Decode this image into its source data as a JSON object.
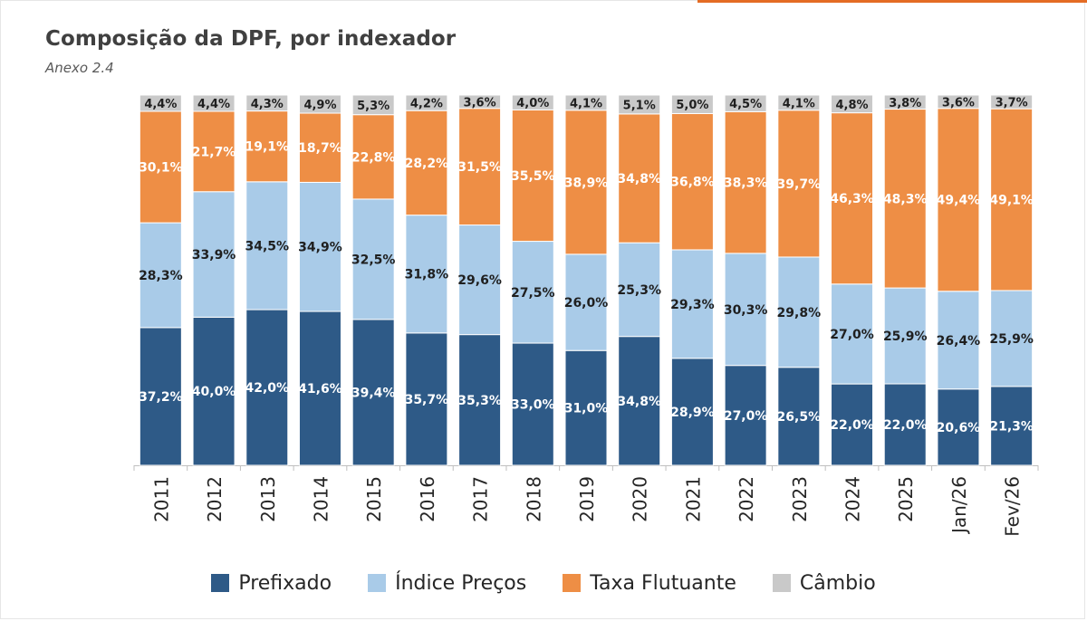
{
  "title": "Composição da DPF, por indexador",
  "subtitle": "Anexo 2.4",
  "colors": {
    "prefixado": "#2e5a87",
    "indice_precos": "#a9cbe8",
    "taxa_flutuante": "#ee8e45",
    "cambio": "#c9c9c9"
  },
  "legend": [
    {
      "label": "Prefixado",
      "color": "#2e5a87"
    },
    {
      "label": "Índice Preços",
      "color": "#a9cbe8"
    },
    {
      "label": "Taxa Flutuante",
      "color": "#ee8e45"
    },
    {
      "label": "Câmbio",
      "color": "#c9c9c9"
    }
  ],
  "chart_data": {
    "type": "bar",
    "stacked": true,
    "categories": [
      "2011",
      "2012",
      "2013",
      "2014",
      "2015",
      "2016",
      "2017",
      "2018",
      "2019",
      "2020",
      "2021",
      "2022",
      "2023",
      "2024",
      "2025",
      "Jan/26",
      "Fev/26"
    ],
    "series": [
      {
        "name": "Prefixado",
        "values": [
          37.2,
          40.0,
          42.0,
          41.6,
          39.4,
          35.7,
          35.3,
          33.0,
          31.0,
          34.8,
          28.9,
          27.0,
          26.5,
          22.0,
          22.0,
          20.6,
          21.3
        ],
        "labels": [
          "37,2%",
          "40,0%",
          "42,0%",
          "41,6%",
          "39,4%",
          "35,7%",
          "35,3%",
          "33,0%",
          "31,0%",
          "34,8%",
          "28,9%",
          "27,0%",
          "26,5%",
          "22,0%",
          "22,0%",
          "20,6%",
          "21,3%"
        ]
      },
      {
        "name": "Índice Preços",
        "values": [
          28.3,
          33.9,
          34.5,
          34.9,
          32.5,
          31.8,
          29.6,
          27.5,
          26.0,
          25.3,
          29.3,
          30.3,
          29.8,
          27.0,
          25.9,
          26.4,
          25.9
        ],
        "labels": [
          "28,3%",
          "33,9%",
          "34,5%",
          "34,9%",
          "32,5%",
          "31,8%",
          "29,6%",
          "27,5%",
          "26,0%",
          "25,3%",
          "29,3%",
          "30,3%",
          "29,8%",
          "27,0%",
          "25,9%",
          "26,4%",
          "25,9%"
        ]
      },
      {
        "name": "Taxa Flutuante",
        "values": [
          30.1,
          21.7,
          19.1,
          18.7,
          22.8,
          28.2,
          31.5,
          35.5,
          38.9,
          34.8,
          36.8,
          38.3,
          39.7,
          46.3,
          48.3,
          49.4,
          49.1
        ],
        "labels": [
          "30,1%",
          "21,7%",
          "19,1%",
          "18,7%",
          "22,8%",
          "28,2%",
          "31,5%",
          "35,5%",
          "38,9%",
          "34,8%",
          "36,8%",
          "38,3%",
          "39,7%",
          "46,3%",
          "48,3%",
          "49,4%",
          "49,1%"
        ]
      },
      {
        "name": "Câmbio",
        "values": [
          4.4,
          4.4,
          4.3,
          4.9,
          5.3,
          4.2,
          3.6,
          4.0,
          4.1,
          5.1,
          5.0,
          4.5,
          4.1,
          4.8,
          3.8,
          3.6,
          3.7
        ],
        "labels": [
          "4,4%",
          "4,4%",
          "4,3%",
          "4,9%",
          "5,3%",
          "4,2%",
          "3,6%",
          "4,0%",
          "4,1%",
          "5,1%",
          "5,0%",
          "4,5%",
          "4,1%",
          "4,8%",
          "3,8%",
          "3,6%",
          "3,7%"
        ]
      }
    ],
    "ylim": [
      0,
      100
    ],
    "grid": false,
    "legend_position": "bottom"
  }
}
